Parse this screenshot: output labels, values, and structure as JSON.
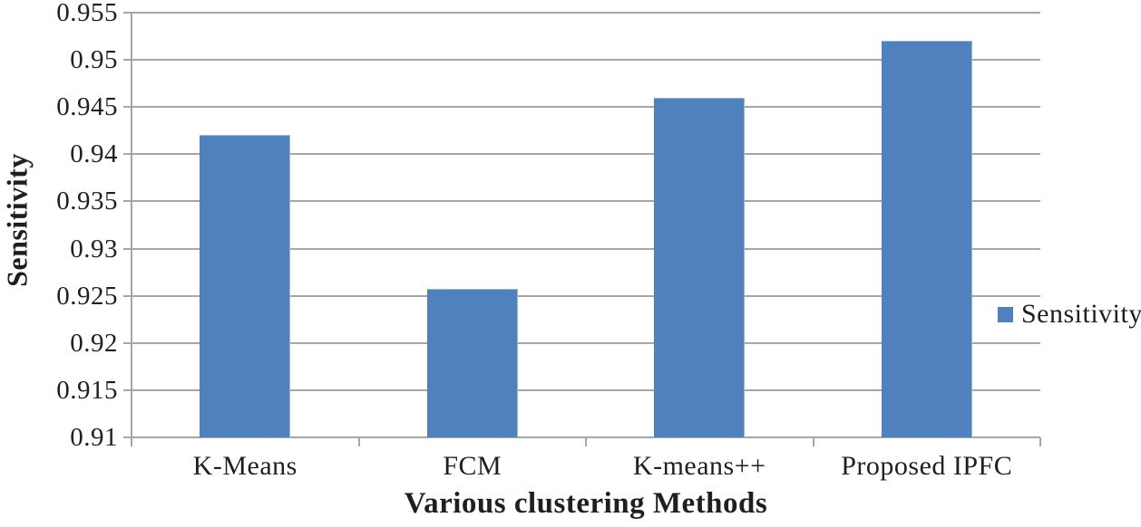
{
  "chart_data": {
    "type": "bar",
    "title": "",
    "categories": [
      "K-Means",
      "FCM",
      "K-means++",
      "Proposed IPFC"
    ],
    "series": [
      {
        "name": "Sensitivity",
        "values": [
          0.942,
          0.9257,
          0.946,
          0.952
        ]
      }
    ],
    "xlabel": "Various clustering Methods",
    "ylabel": "Sensitivity",
    "ylim": [
      0.91,
      0.955
    ],
    "ytick_step": 0.005,
    "ytick_labels": [
      "0.91",
      "0.915",
      "0.92",
      "0.925",
      "0.93",
      "0.935",
      "0.94",
      "0.945",
      "0.95",
      "0.955"
    ],
    "grid": true,
    "legend": {
      "position": "right",
      "entries": [
        "Sensitivity"
      ]
    },
    "colors": {
      "bar": "#4f81bd",
      "bar_edge": "#9ab5d9",
      "gridline": "#a6a6a6",
      "axis": "#a6a6a6",
      "text": "#1f1f1f"
    }
  }
}
